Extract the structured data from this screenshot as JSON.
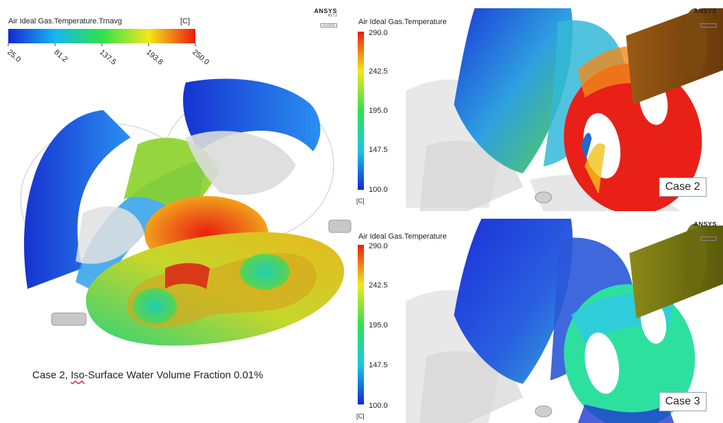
{
  "left_panel": {
    "legend_title": "Air Ideal Gas.Temperature.Trnavg",
    "legend_unit": "[C]",
    "ticks": [
      "25.0",
      "81.2",
      "137.5",
      "193.8",
      "250.0"
    ],
    "caption_prefix": "Case 2, ",
    "caption_underlined": "Iso",
    "caption_suffix": "-Surface Water Volume Fraction 0.01%"
  },
  "right_top": {
    "legend_title": "Air Ideal Gas.Temperature",
    "ticks": [
      "290.0",
      "242.5",
      "195.0",
      "147.5",
      "100.0"
    ],
    "unit": "[C]",
    "case_label": "Case 2"
  },
  "right_bottom": {
    "legend_title": "Air Ideal Gas.Temperature",
    "ticks": [
      "290.0",
      "242.5",
      "195.0",
      "147.5",
      "100.0"
    ],
    "unit": "[C]",
    "case_label": "Case 3"
  },
  "logos": {
    "name": "ANSYS",
    "version": "R17.2",
    "edition": "Academic"
  },
  "colors": {
    "cold": "#1e2fd6",
    "mid": "#2fd25a",
    "hot": "#e82118"
  }
}
